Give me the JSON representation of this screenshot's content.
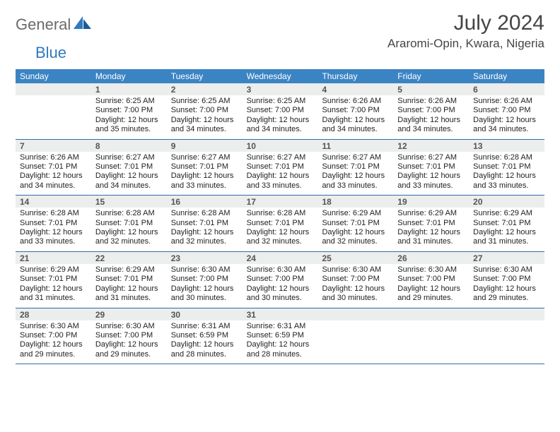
{
  "brand": {
    "part1": "General",
    "part2": "Blue"
  },
  "title": "July 2024",
  "location": "Araromi-Opin, Kwara, Nigeria",
  "colors": {
    "header_bg": "#3b84c4",
    "header_text": "#ffffff",
    "daynum_bg": "#eceded",
    "rule": "#2f6fa8",
    "brand_gray": "#6a6a6a",
    "brand_blue": "#2f7ac0",
    "text": "#222222",
    "title_color": "#454545",
    "body_fontsize": 11,
    "daynum_fontsize": 12,
    "head_fontsize": 12,
    "title_fontsize": 30,
    "location_fontsize": 17
  },
  "day_names": [
    "Sunday",
    "Monday",
    "Tuesday",
    "Wednesday",
    "Thursday",
    "Friday",
    "Saturday"
  ],
  "weeks": [
    [
      {
        "n": "",
        "sr": "",
        "ss": "",
        "dl": ""
      },
      {
        "n": "1",
        "sr": "Sunrise: 6:25 AM",
        "ss": "Sunset: 7:00 PM",
        "dl": "Daylight: 12 hours and 35 minutes."
      },
      {
        "n": "2",
        "sr": "Sunrise: 6:25 AM",
        "ss": "Sunset: 7:00 PM",
        "dl": "Daylight: 12 hours and 34 minutes."
      },
      {
        "n": "3",
        "sr": "Sunrise: 6:25 AM",
        "ss": "Sunset: 7:00 PM",
        "dl": "Daylight: 12 hours and 34 minutes."
      },
      {
        "n": "4",
        "sr": "Sunrise: 6:26 AM",
        "ss": "Sunset: 7:00 PM",
        "dl": "Daylight: 12 hours and 34 minutes."
      },
      {
        "n": "5",
        "sr": "Sunrise: 6:26 AM",
        "ss": "Sunset: 7:00 PM",
        "dl": "Daylight: 12 hours and 34 minutes."
      },
      {
        "n": "6",
        "sr": "Sunrise: 6:26 AM",
        "ss": "Sunset: 7:00 PM",
        "dl": "Daylight: 12 hours and 34 minutes."
      }
    ],
    [
      {
        "n": "7",
        "sr": "Sunrise: 6:26 AM",
        "ss": "Sunset: 7:01 PM",
        "dl": "Daylight: 12 hours and 34 minutes."
      },
      {
        "n": "8",
        "sr": "Sunrise: 6:27 AM",
        "ss": "Sunset: 7:01 PM",
        "dl": "Daylight: 12 hours and 34 minutes."
      },
      {
        "n": "9",
        "sr": "Sunrise: 6:27 AM",
        "ss": "Sunset: 7:01 PM",
        "dl": "Daylight: 12 hours and 33 minutes."
      },
      {
        "n": "10",
        "sr": "Sunrise: 6:27 AM",
        "ss": "Sunset: 7:01 PM",
        "dl": "Daylight: 12 hours and 33 minutes."
      },
      {
        "n": "11",
        "sr": "Sunrise: 6:27 AM",
        "ss": "Sunset: 7:01 PM",
        "dl": "Daylight: 12 hours and 33 minutes."
      },
      {
        "n": "12",
        "sr": "Sunrise: 6:27 AM",
        "ss": "Sunset: 7:01 PM",
        "dl": "Daylight: 12 hours and 33 minutes."
      },
      {
        "n": "13",
        "sr": "Sunrise: 6:28 AM",
        "ss": "Sunset: 7:01 PM",
        "dl": "Daylight: 12 hours and 33 minutes."
      }
    ],
    [
      {
        "n": "14",
        "sr": "Sunrise: 6:28 AM",
        "ss": "Sunset: 7:01 PM",
        "dl": "Daylight: 12 hours and 33 minutes."
      },
      {
        "n": "15",
        "sr": "Sunrise: 6:28 AM",
        "ss": "Sunset: 7:01 PM",
        "dl": "Daylight: 12 hours and 32 minutes."
      },
      {
        "n": "16",
        "sr": "Sunrise: 6:28 AM",
        "ss": "Sunset: 7:01 PM",
        "dl": "Daylight: 12 hours and 32 minutes."
      },
      {
        "n": "17",
        "sr": "Sunrise: 6:28 AM",
        "ss": "Sunset: 7:01 PM",
        "dl": "Daylight: 12 hours and 32 minutes."
      },
      {
        "n": "18",
        "sr": "Sunrise: 6:29 AM",
        "ss": "Sunset: 7:01 PM",
        "dl": "Daylight: 12 hours and 32 minutes."
      },
      {
        "n": "19",
        "sr": "Sunrise: 6:29 AM",
        "ss": "Sunset: 7:01 PM",
        "dl": "Daylight: 12 hours and 31 minutes."
      },
      {
        "n": "20",
        "sr": "Sunrise: 6:29 AM",
        "ss": "Sunset: 7:01 PM",
        "dl": "Daylight: 12 hours and 31 minutes."
      }
    ],
    [
      {
        "n": "21",
        "sr": "Sunrise: 6:29 AM",
        "ss": "Sunset: 7:01 PM",
        "dl": "Daylight: 12 hours and 31 minutes."
      },
      {
        "n": "22",
        "sr": "Sunrise: 6:29 AM",
        "ss": "Sunset: 7:01 PM",
        "dl": "Daylight: 12 hours and 31 minutes."
      },
      {
        "n": "23",
        "sr": "Sunrise: 6:30 AM",
        "ss": "Sunset: 7:00 PM",
        "dl": "Daylight: 12 hours and 30 minutes."
      },
      {
        "n": "24",
        "sr": "Sunrise: 6:30 AM",
        "ss": "Sunset: 7:00 PM",
        "dl": "Daylight: 12 hours and 30 minutes."
      },
      {
        "n": "25",
        "sr": "Sunrise: 6:30 AM",
        "ss": "Sunset: 7:00 PM",
        "dl": "Daylight: 12 hours and 30 minutes."
      },
      {
        "n": "26",
        "sr": "Sunrise: 6:30 AM",
        "ss": "Sunset: 7:00 PM",
        "dl": "Daylight: 12 hours and 29 minutes."
      },
      {
        "n": "27",
        "sr": "Sunrise: 6:30 AM",
        "ss": "Sunset: 7:00 PM",
        "dl": "Daylight: 12 hours and 29 minutes."
      }
    ],
    [
      {
        "n": "28",
        "sr": "Sunrise: 6:30 AM",
        "ss": "Sunset: 7:00 PM",
        "dl": "Daylight: 12 hours and 29 minutes."
      },
      {
        "n": "29",
        "sr": "Sunrise: 6:30 AM",
        "ss": "Sunset: 7:00 PM",
        "dl": "Daylight: 12 hours and 29 minutes."
      },
      {
        "n": "30",
        "sr": "Sunrise: 6:31 AM",
        "ss": "Sunset: 6:59 PM",
        "dl": "Daylight: 12 hours and 28 minutes."
      },
      {
        "n": "31",
        "sr": "Sunrise: 6:31 AM",
        "ss": "Sunset: 6:59 PM",
        "dl": "Daylight: 12 hours and 28 minutes."
      },
      {
        "n": "",
        "sr": "",
        "ss": "",
        "dl": ""
      },
      {
        "n": "",
        "sr": "",
        "ss": "",
        "dl": ""
      },
      {
        "n": "",
        "sr": "",
        "ss": "",
        "dl": ""
      }
    ]
  ]
}
